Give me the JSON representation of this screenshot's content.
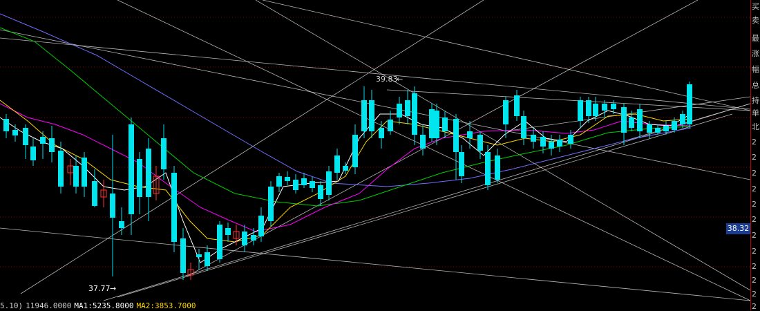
{
  "chart_data": {
    "type": "candlestick",
    "annotations": {
      "high_label": "39.83",
      "low_label": "37.77"
    },
    "current_price_tag": "38.32",
    "volume_line": {
      "prefix": "5.10)",
      "volume": "11946.0000",
      "ma1": "MA1:5235.8000",
      "ma2": "MA2:3853.7000"
    },
    "side_panel_chars": [
      "买",
      "卖",
      "最",
      "涨",
      "幅",
      "总",
      "持",
      "单",
      "北",
      "2",
      "2",
      "2",
      "2",
      "2",
      "2",
      "2",
      "2",
      "2",
      "2",
      "2",
      "2"
    ],
    "colors": {
      "up": "#ff3232",
      "down": "#00e5ee",
      "ma5": "#ffffff",
      "ma10": "#ffd700",
      "ma20": "#ff00ff",
      "ma40": "#00d000",
      "ma60": "#7070ff",
      "trendline": "#d8d8d8",
      "grid": "#8b0000",
      "text": "#d8d8d8",
      "vol_text": "#d0d0d0",
      "vol_ma1": "#ffffff",
      "vol_ma2": "#ffd700"
    }
  }
}
